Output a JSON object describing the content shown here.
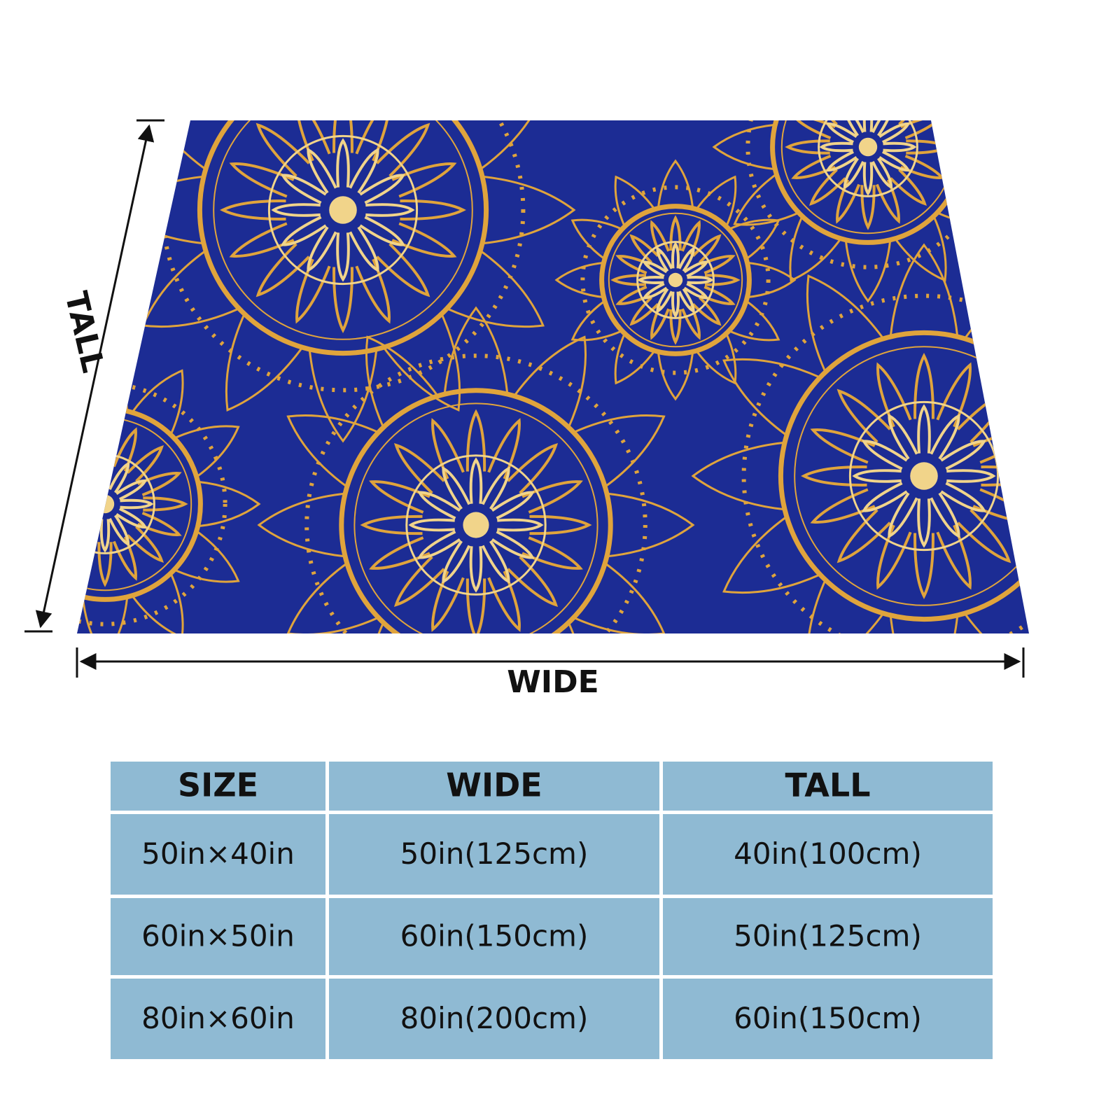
{
  "dimensions": {
    "tall_label": "TALL",
    "wide_label": "WIDE"
  },
  "table": {
    "header": [
      "SIZE",
      "WIDE",
      "TALL"
    ],
    "rows": [
      [
        "50in×40in",
        "50in(125cm)",
        "40in(100cm)"
      ],
      [
        "60in×50in",
        "60in(150cm)",
        "50in(125cm)"
      ],
      [
        "80in×60in",
        "80in(200cm)",
        "60in(150cm)"
      ]
    ]
  }
}
